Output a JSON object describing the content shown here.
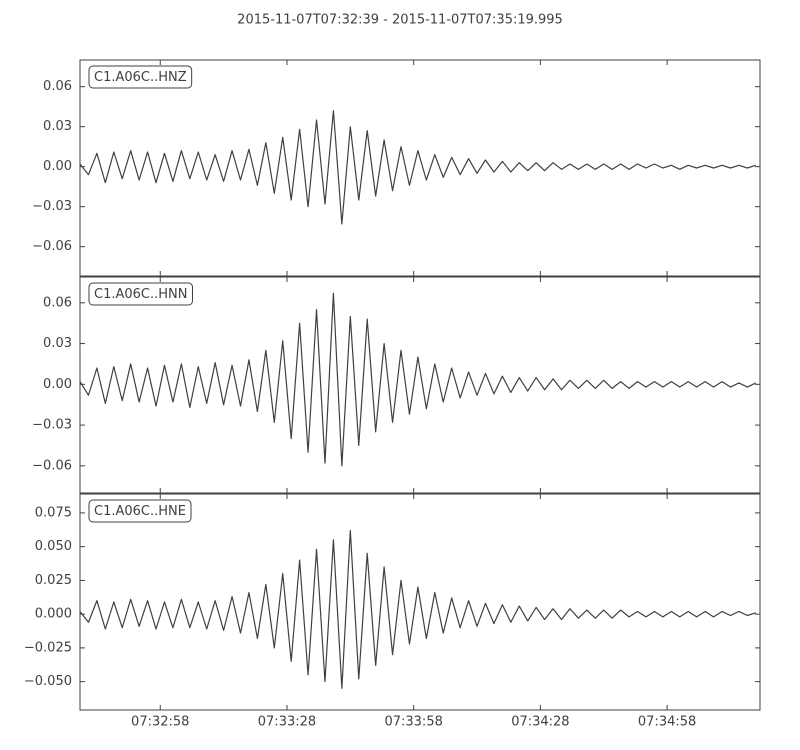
{
  "chart_data": {
    "type": "line",
    "title": "2015-11-07T07:32:39  -  2015-11-07T07:35:19.995",
    "xlim": [
      "07:32:39",
      "07:35:19.995"
    ],
    "xticks": [
      "07:32:58",
      "07:33:28",
      "07:33:58",
      "07:34:28",
      "07:34:58"
    ],
    "x": [
      "07:32:39",
      "07:32:41",
      "07:32:43",
      "07:32:45",
      "07:32:47",
      "07:32:49",
      "07:32:51",
      "07:32:53",
      "07:32:55",
      "07:32:57",
      "07:32:59",
      "07:33:01",
      "07:33:03",
      "07:33:05",
      "07:33:07",
      "07:33:09",
      "07:33:11",
      "07:33:13",
      "07:33:15",
      "07:33:17",
      "07:33:19",
      "07:33:21",
      "07:33:23",
      "07:33:25",
      "07:33:27",
      "07:33:29",
      "07:33:31",
      "07:33:33",
      "07:33:35",
      "07:33:37",
      "07:33:39",
      "07:33:41",
      "07:33:43",
      "07:33:45",
      "07:33:47",
      "07:33:49",
      "07:33:51",
      "07:33:53",
      "07:33:55",
      "07:33:57",
      "07:33:59",
      "07:34:01",
      "07:34:03",
      "07:34:05",
      "07:34:07",
      "07:34:09",
      "07:34:11",
      "07:34:13",
      "07:34:15",
      "07:34:17",
      "07:34:19",
      "07:34:21",
      "07:34:23",
      "07:34:25",
      "07:34:27",
      "07:34:29",
      "07:34:31",
      "07:34:33",
      "07:34:35",
      "07:34:37",
      "07:34:39",
      "07:34:41",
      "07:34:43",
      "07:34:45",
      "07:34:47",
      "07:34:49",
      "07:34:51",
      "07:34:53",
      "07:34:55",
      "07:34:57",
      "07:34:59",
      "07:35:01",
      "07:35:03",
      "07:35:05",
      "07:35:07",
      "07:35:09",
      "07:35:11",
      "07:35:13",
      "07:35:15",
      "07:35:17",
      "07:35:19"
    ],
    "series": [
      {
        "name": "C1.A06C..HNZ",
        "color": "#404040",
        "ylim": [
          -0.082,
          0.08
        ],
        "yticks": [
          {
            "value": -0.06,
            "label": "−0.06"
          },
          {
            "value": -0.03,
            "label": "−0.03"
          },
          {
            "value": 0,
            "label": "0.00"
          },
          {
            "value": 0.03,
            "label": "0.03"
          },
          {
            "value": 0.06,
            "label": "0.06"
          }
        ],
        "values": [
          0.002,
          -0.006,
          0.01,
          -0.012,
          0.011,
          -0.009,
          0.012,
          -0.01,
          0.011,
          -0.012,
          0.01,
          -0.011,
          0.012,
          -0.009,
          0.011,
          -0.01,
          0.009,
          -0.011,
          0.012,
          -0.01,
          0.013,
          -0.014,
          0.018,
          -0.02,
          0.022,
          -0.025,
          0.028,
          -0.03,
          0.035,
          -0.028,
          0.042,
          -0.043,
          0.03,
          -0.025,
          0.027,
          -0.022,
          0.02,
          -0.018,
          0.015,
          -0.014,
          0.012,
          -0.01,
          0.009,
          -0.008,
          0.007,
          -0.006,
          0.006,
          -0.005,
          0.005,
          -0.004,
          0.004,
          -0.004,
          0.003,
          -0.003,
          0.003,
          -0.003,
          0.003,
          -0.002,
          0.002,
          -0.002,
          0.002,
          -0.002,
          0.002,
          -0.002,
          0.002,
          -0.002,
          0.002,
          -0.001,
          0.002,
          -0.001,
          0.001,
          -0.002,
          0.001,
          -0.001,
          0.001,
          -0.001,
          0.001,
          -0.001,
          0.001,
          -0.001,
          0.001
        ]
      },
      {
        "name": "C1.A06C..HNN",
        "color": "#404040",
        "ylim": [
          -0.08,
          0.079
        ],
        "yticks": [
          {
            "value": -0.06,
            "label": "−0.06"
          },
          {
            "value": -0.03,
            "label": "−0.03"
          },
          {
            "value": 0,
            "label": "0.00"
          },
          {
            "value": 0.03,
            "label": "0.03"
          },
          {
            "value": 0.06,
            "label": "0.06"
          }
        ],
        "values": [
          0.002,
          -0.008,
          0.012,
          -0.014,
          0.013,
          -0.012,
          0.015,
          -0.013,
          0.012,
          -0.016,
          0.014,
          -0.013,
          0.015,
          -0.017,
          0.013,
          -0.014,
          0.016,
          -0.015,
          0.014,
          -0.016,
          0.018,
          -0.02,
          0.025,
          -0.028,
          0.032,
          -0.04,
          0.045,
          -0.05,
          0.055,
          -0.058,
          0.067,
          -0.06,
          0.05,
          -0.045,
          0.048,
          -0.035,
          0.03,
          -0.028,
          0.025,
          -0.022,
          0.02,
          -0.018,
          0.015,
          -0.013,
          0.012,
          -0.01,
          0.009,
          -0.008,
          0.008,
          -0.007,
          0.006,
          -0.006,
          0.005,
          -0.005,
          0.005,
          -0.004,
          0.004,
          -0.004,
          0.003,
          -0.003,
          0.003,
          -0.003,
          0.003,
          -0.003,
          0.002,
          -0.003,
          0.002,
          -0.002,
          0.002,
          -0.002,
          0.002,
          -0.002,
          0.002,
          -0.002,
          0.002,
          -0.002,
          0.002,
          -0.002,
          0.001,
          -0.002,
          0.001
        ]
      },
      {
        "name": "C1.A06C..HNE",
        "color": "#404040",
        "ylim": [
          -0.071,
          0.089
        ],
        "yticks": [
          {
            "value": -0.05,
            "label": "−0.050"
          },
          {
            "value": -0.025,
            "label": "−0.025"
          },
          {
            "value": 0,
            "label": "0.000"
          },
          {
            "value": 0.025,
            "label": "0.025"
          },
          {
            "value": 0.05,
            "label": "0.050"
          },
          {
            "value": 0.075,
            "label": "0.075"
          }
        ],
        "values": [
          0.002,
          -0.006,
          0.01,
          -0.011,
          0.009,
          -0.01,
          0.011,
          -0.009,
          0.01,
          -0.011,
          0.009,
          -0.01,
          0.011,
          -0.01,
          0.009,
          -0.011,
          0.01,
          -0.012,
          0.013,
          -0.014,
          0.016,
          -0.018,
          0.022,
          -0.025,
          0.03,
          -0.035,
          0.04,
          -0.045,
          0.048,
          -0.05,
          0.055,
          -0.055,
          0.062,
          -0.048,
          0.045,
          -0.038,
          0.035,
          -0.03,
          0.025,
          -0.022,
          0.02,
          -0.018,
          0.016,
          -0.014,
          0.012,
          -0.01,
          0.01,
          -0.009,
          0.008,
          -0.007,
          0.007,
          -0.006,
          0.006,
          -0.005,
          0.005,
          -0.004,
          0.004,
          -0.004,
          0.004,
          -0.003,
          0.003,
          -0.003,
          0.003,
          -0.003,
          0.003,
          -0.002,
          0.002,
          -0.002,
          0.002,
          -0.002,
          0.002,
          -0.002,
          0.002,
          -0.002,
          0.002,
          -0.002,
          0.002,
          -0.001,
          0.002,
          -0.001,
          0.001
        ]
      }
    ]
  }
}
